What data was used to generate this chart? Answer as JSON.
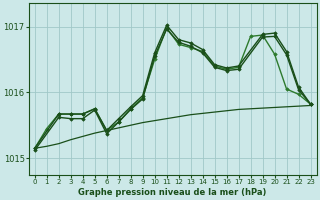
{
  "bg_color": "#cce8e8",
  "grid_color": "#a0c8c8",
  "line_color_light": "#2d7a2d",
  "line_color_dark": "#1a4f1a",
  "xlabel": "Graphe pression niveau de la mer (hPa)",
  "xlim": [
    -0.5,
    23.5
  ],
  "ylim": [
    1014.75,
    1017.35
  ],
  "yticks": [
    1015,
    1016,
    1017
  ],
  "xticks": [
    0,
    1,
    2,
    3,
    4,
    5,
    6,
    7,
    8,
    9,
    10,
    11,
    12,
    13,
    14,
    15,
    16,
    17,
    18,
    19,
    20,
    21,
    22,
    23
  ],
  "series_flat": {
    "x": [
      0,
      1,
      2,
      3,
      4,
      5,
      6,
      7,
      8,
      9,
      10,
      11,
      12,
      13,
      14,
      15,
      16,
      17,
      18,
      19,
      20,
      21,
      22,
      23
    ],
    "y": [
      1015.15,
      1015.18,
      1015.22,
      1015.28,
      1015.33,
      1015.38,
      1015.42,
      1015.46,
      1015.5,
      1015.54,
      1015.57,
      1015.6,
      1015.63,
      1015.66,
      1015.68,
      1015.7,
      1015.72,
      1015.74,
      1015.75,
      1015.76,
      1015.77,
      1015.78,
      1015.79,
      1015.8
    ],
    "color": "#1a4f1a",
    "lw": 0.9
  },
  "series_a": {
    "x": [
      0,
      1,
      2,
      3,
      4,
      5,
      6,
      7,
      8,
      9,
      10,
      11,
      12,
      13,
      14,
      15,
      16,
      17,
      18,
      19,
      20,
      21,
      22,
      23
    ],
    "y": [
      1015.15,
      1015.45,
      1015.67,
      1015.67,
      1015.67,
      1015.75,
      1015.42,
      1015.55,
      1015.75,
      1015.92,
      1016.5,
      1016.98,
      1016.73,
      1016.68,
      1016.62,
      1016.4,
      1016.35,
      1016.38,
      1016.85,
      1016.87,
      1016.58,
      1016.05,
      1015.97,
      1015.82
    ],
    "color": "#2d7a2d",
    "lw": 1.0
  },
  "series_b": {
    "x": [
      0,
      2,
      3,
      4,
      5,
      6,
      7,
      8,
      9,
      10,
      11,
      12,
      13,
      14,
      15,
      16,
      17,
      19,
      20,
      21,
      22,
      23
    ],
    "y": [
      1015.15,
      1015.67,
      1015.67,
      1015.67,
      1015.75,
      1015.42,
      1015.6,
      1015.78,
      1015.95,
      1016.6,
      1017.02,
      1016.8,
      1016.75,
      1016.65,
      1016.42,
      1016.37,
      1016.4,
      1016.88,
      1016.9,
      1016.62,
      1016.08,
      1015.82
    ],
    "color": "#1a4f1a",
    "lw": 1.0
  },
  "series_c": {
    "x": [
      0,
      2,
      3,
      4,
      5,
      6,
      7,
      8,
      9,
      10,
      11,
      12,
      13,
      14,
      15,
      16,
      17,
      19,
      20,
      21,
      22,
      23
    ],
    "y": [
      1015.12,
      1015.62,
      1015.6,
      1015.6,
      1015.73,
      1015.37,
      1015.55,
      1015.74,
      1015.9,
      1016.55,
      1016.96,
      1016.76,
      1016.7,
      1016.6,
      1016.38,
      1016.33,
      1016.35,
      1016.84,
      1016.85,
      1016.57,
      1016.04,
      1015.82
    ],
    "color": "#1a4f1a",
    "lw": 1.0
  }
}
